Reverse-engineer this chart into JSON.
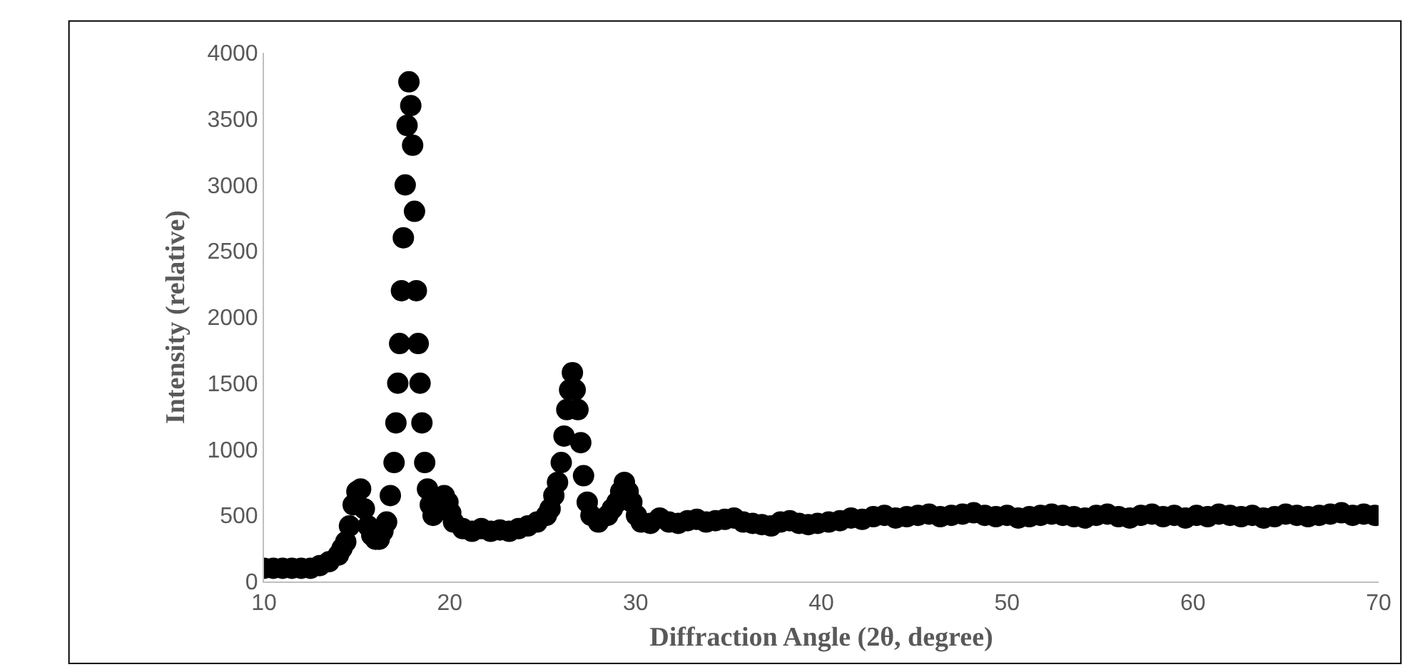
{
  "chart_data": {
    "type": "scatter",
    "xlabel": "Diffraction Angle (2θ, degree)",
    "ylabel": "Intensity (relative)",
    "xlim": [
      10,
      70
    ],
    "xticks": [
      10,
      20,
      30,
      40,
      50,
      60,
      70
    ],
    "ylim": [
      0,
      4000
    ],
    "yticks": [
      0,
      500,
      1000,
      1500,
      2000,
      2500,
      3000,
      3500,
      4000
    ],
    "grid": false,
    "legend": false,
    "marker": "circle",
    "series": [
      {
        "color": "#000000",
        "x": [
          10,
          10.5,
          11,
          11.5,
          12,
          12.5,
          13,
          13.5,
          14,
          14.2,
          14.4,
          14.6,
          14.8,
          15.0,
          15.2,
          15.4,
          15.6,
          15.8,
          16.0,
          16.2,
          16.4,
          16.6,
          16.8,
          17.0,
          17.1,
          17.2,
          17.3,
          17.4,
          17.5,
          17.6,
          17.7,
          17.8,
          17.9,
          18.0,
          18.1,
          18.2,
          18.3,
          18.4,
          18.5,
          18.65,
          18.8,
          18.95,
          19.1,
          19.7,
          19.9,
          20.05,
          20.2,
          20.7,
          21.2,
          21.7,
          22.2,
          22.7,
          23.2,
          23.7,
          24.2,
          24.7,
          25.2,
          25.4,
          25.6,
          25.8,
          26.0,
          26.15,
          26.3,
          26.45,
          26.6,
          26.75,
          26.9,
          27.05,
          27.2,
          27.4,
          27.6,
          28.0,
          28.5,
          28.75,
          29.0,
          29.2,
          29.4,
          29.6,
          29.8,
          30.05,
          30.3,
          30.8,
          31.3,
          31.8,
          32.3,
          32.8,
          33.3,
          33.8,
          34.3,
          34.8,
          35.3,
          35.8,
          36.3,
          36.8,
          37.3,
          37.8,
          38.3,
          38.8,
          39.3,
          39.8,
          40.4,
          41.0,
          41.6,
          42.2,
          42.8,
          43.4,
          44.0,
          44.6,
          45.2,
          45.8,
          46.4,
          47.0,
          47.6,
          48.2,
          48.8,
          49.4,
          50.0,
          50.6,
          51.2,
          51.8,
          52.4,
          53.0,
          53.6,
          54.2,
          54.8,
          55.4,
          56.0,
          56.6,
          57.2,
          57.8,
          58.4,
          59.0,
          59.6,
          60.2,
          60.8,
          61.4,
          62.0,
          62.6,
          63.2,
          63.8,
          64.4,
          65.0,
          65.6,
          66.2,
          66.8,
          67.4,
          68.0,
          68.6,
          69.2,
          69.8
        ],
        "values": [
          100,
          100,
          100,
          100,
          100,
          100,
          120,
          150,
          200,
          250,
          300,
          420,
          580,
          680,
          700,
          550,
          420,
          350,
          320,
          320,
          380,
          450,
          650,
          900,
          1200,
          1500,
          1800,
          2200,
          2600,
          3000,
          3450,
          3780,
          3600,
          3300,
          2800,
          2200,
          1800,
          1500,
          1200,
          900,
          700,
          580,
          500,
          650,
          600,
          520,
          450,
          400,
          380,
          400,
          380,
          390,
          380,
          400,
          420,
          450,
          500,
          550,
          650,
          750,
          900,
          1100,
          1300,
          1450,
          1580,
          1450,
          1300,
          1050,
          800,
          600,
          500,
          450,
          500,
          550,
          600,
          680,
          750,
          680,
          600,
          500,
          450,
          440,
          480,
          450,
          440,
          460,
          470,
          450,
          460,
          470,
          480,
          450,
          440,
          430,
          420,
          450,
          460,
          440,
          430,
          440,
          450,
          460,
          480,
          470,
          490,
          500,
          480,
          490,
          500,
          510,
          490,
          500,
          510,
          520,
          500,
          490,
          500,
          480,
          490,
          500,
          510,
          500,
          490,
          480,
          500,
          510,
          490,
          480,
          500,
          510,
          490,
          500,
          480,
          500,
          490,
          510,
          500,
          490,
          500,
          480,
          490,
          510,
          500,
          490,
          500,
          510,
          520,
          500,
          510,
          500
        ]
      }
    ]
  }
}
